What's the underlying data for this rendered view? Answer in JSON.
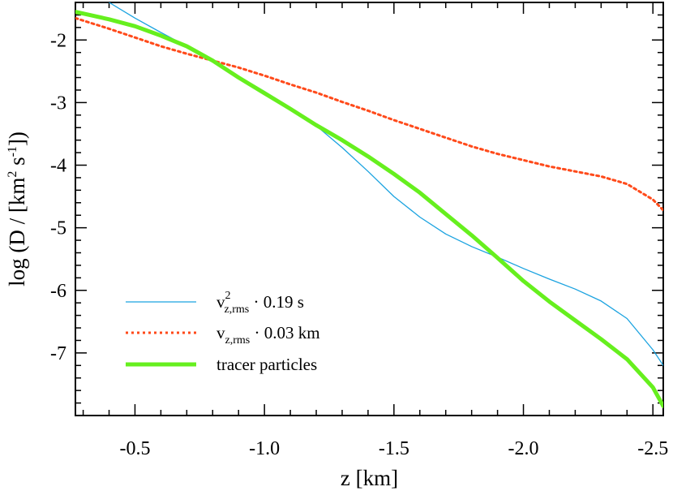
{
  "chart_data": {
    "type": "line",
    "xlabel": "z [km]",
    "ylabel": "log (D / [km2 s-1])",
    "ylabel_parts": {
      "pre": "log (D / [km",
      "sup1": "2",
      "mid": " s",
      "sup2": "-1",
      "post": "])"
    },
    "xlim": [
      -0.27,
      -2.54
    ],
    "ylim": [
      -8.0,
      -1.4
    ],
    "x_ticks": [
      -0.5,
      -1.0,
      -1.5,
      -2.0,
      -2.5
    ],
    "x_tick_labels": [
      "-0.5",
      "-1.0",
      "-1.5",
      "-2.0",
      "-2.5"
    ],
    "y_ticks": [
      -2,
      -3,
      -4,
      -5,
      -6,
      -7
    ],
    "y_tick_labels": [
      "-2",
      "-3",
      "-4",
      "-5",
      "-6",
      "-7"
    ],
    "grid": false,
    "legend_position": "bottom-left",
    "series": [
      {
        "key": "vsq",
        "legend": {
          "base": "v",
          "sup": "2",
          "sub": "z,rms",
          "tail": " · 0.19 s"
        },
        "color": "#1ba3e0",
        "style": "solid",
        "x": [
          -0.4,
          -0.5,
          -0.6,
          -0.7,
          -0.8,
          -0.9,
          -1.0,
          -1.1,
          -1.2,
          -1.3,
          -1.4,
          -1.5,
          -1.6,
          -1.7,
          -1.8,
          -1.9,
          -2.0,
          -2.1,
          -2.2,
          -2.3,
          -2.4,
          -2.5,
          -2.54
        ],
        "y": [
          -1.4,
          -1.65,
          -1.88,
          -2.1,
          -2.33,
          -2.58,
          -2.82,
          -3.08,
          -3.37,
          -3.72,
          -4.1,
          -4.5,
          -4.83,
          -5.1,
          -5.3,
          -5.47,
          -5.65,
          -5.82,
          -5.98,
          -6.17,
          -6.45,
          -6.95,
          -7.2
        ]
      },
      {
        "key": "vrms",
        "legend": {
          "base": "v",
          "sup": "",
          "sub": "z,rms",
          "tail": " · 0.03 km"
        },
        "color": "#ff4a1a",
        "style": "dotted",
        "x": [
          -0.27,
          -0.4,
          -0.5,
          -0.6,
          -0.7,
          -0.8,
          -0.9,
          -1.0,
          -1.1,
          -1.2,
          -1.3,
          -1.4,
          -1.5,
          -1.6,
          -1.7,
          -1.8,
          -1.9,
          -2.0,
          -2.1,
          -2.2,
          -2.3,
          -2.4,
          -2.5,
          -2.54
        ],
        "y": [
          -1.65,
          -1.82,
          -1.96,
          -2.1,
          -2.22,
          -2.33,
          -2.44,
          -2.57,
          -2.71,
          -2.84,
          -2.99,
          -3.13,
          -3.28,
          -3.42,
          -3.56,
          -3.7,
          -3.82,
          -3.92,
          -4.02,
          -4.1,
          -4.18,
          -4.3,
          -4.55,
          -4.72
        ]
      },
      {
        "key": "tracer",
        "legend": {
          "base": "tracer particles",
          "sup": "",
          "sub": "",
          "tail": ""
        },
        "color": "#66ef1e",
        "style": "solid-thick",
        "x": [
          -0.27,
          -0.4,
          -0.5,
          -0.6,
          -0.7,
          -0.8,
          -0.9,
          -1.0,
          -1.1,
          -1.2,
          -1.3,
          -1.4,
          -1.5,
          -1.6,
          -1.7,
          -1.8,
          -1.9,
          -2.0,
          -2.1,
          -2.2,
          -2.3,
          -2.4,
          -2.5,
          -2.54
        ],
        "y": [
          -1.55,
          -1.67,
          -1.78,
          -1.93,
          -2.1,
          -2.33,
          -2.6,
          -2.85,
          -3.1,
          -3.36,
          -3.6,
          -3.86,
          -4.14,
          -4.44,
          -4.78,
          -5.12,
          -5.48,
          -5.85,
          -6.18,
          -6.48,
          -6.78,
          -7.1,
          -7.55,
          -7.85
        ]
      }
    ]
  }
}
